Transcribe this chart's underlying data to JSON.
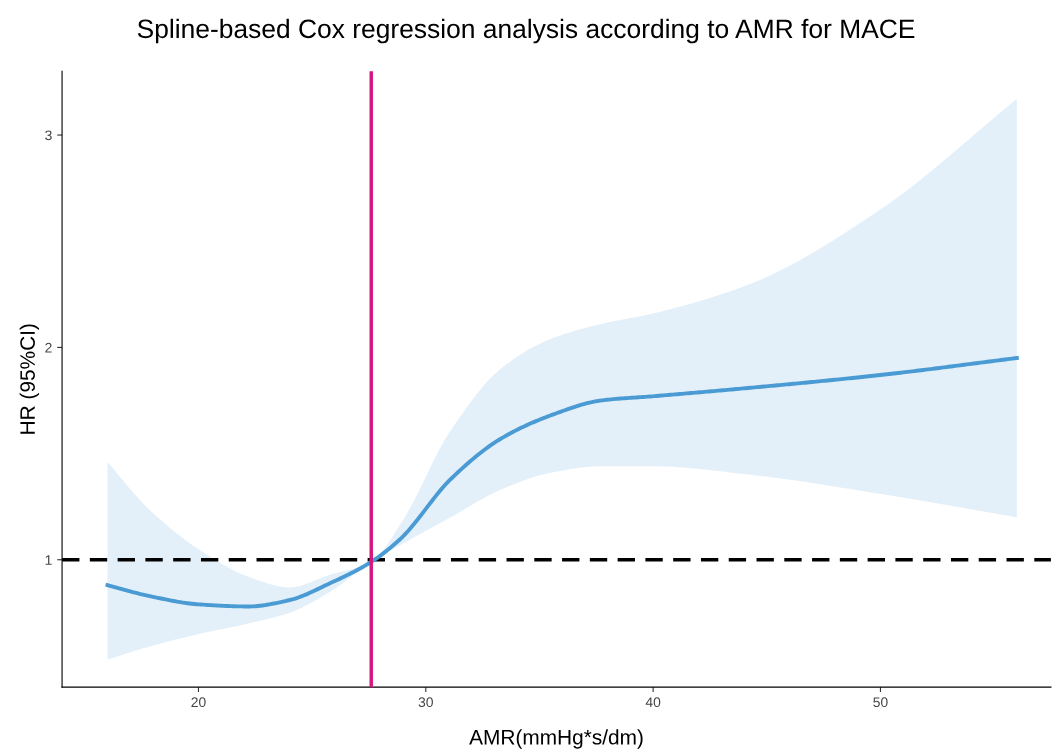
{
  "chart_data": {
    "type": "line",
    "title": "Spline-based Cox regression analysis according to AMR for MACE",
    "xlabel": "AMR(mmHg*s/dm)",
    "ylabel": "HR (95%CI)",
    "xlim": [
      14.0,
      57.5
    ],
    "ylim": [
      0.4,
      3.3
    ],
    "xticks": [
      20,
      30,
      40,
      50
    ],
    "yticks": [
      1,
      2,
      3
    ],
    "grid": false,
    "legend": false,
    "marker": "none",
    "line_style": "solid",
    "series": [
      {
        "color": "#4a9bd4",
        "x": [
          16.0,
          17.8,
          20.0,
          22.2,
          24.0,
          25.8,
          27.6,
          28.9,
          31.1,
          33.3,
          35.5,
          37.7,
          40.0,
          44.3,
          50.0,
          56.0
        ],
        "values": [
          0.88,
          0.83,
          0.79,
          0.78,
          0.81,
          0.89,
          0.99,
          1.1,
          1.38,
          1.57,
          1.68,
          1.75,
          1.77,
          1.81,
          1.87,
          1.95
        ],
        "upper": [
          1.46,
          1.24,
          1.05,
          0.92,
          0.87,
          0.93,
          0.99,
          1.17,
          1.61,
          1.9,
          2.04,
          2.11,
          2.16,
          2.3,
          2.65,
          3.17
        ],
        "lower": [
          0.53,
          0.59,
          0.65,
          0.7,
          0.75,
          0.85,
          0.99,
          1.07,
          1.2,
          1.33,
          1.41,
          1.44,
          1.44,
          1.4,
          1.31,
          1.2
        ]
      }
    ],
    "ref_lines": [
      {
        "axis": "y",
        "value": 1,
        "color": "#000000",
        "line_style": "dashed"
      },
      {
        "axis": "x",
        "value": 27.6,
        "color": "#d6177f",
        "line_style": "solid"
      }
    ]
  }
}
